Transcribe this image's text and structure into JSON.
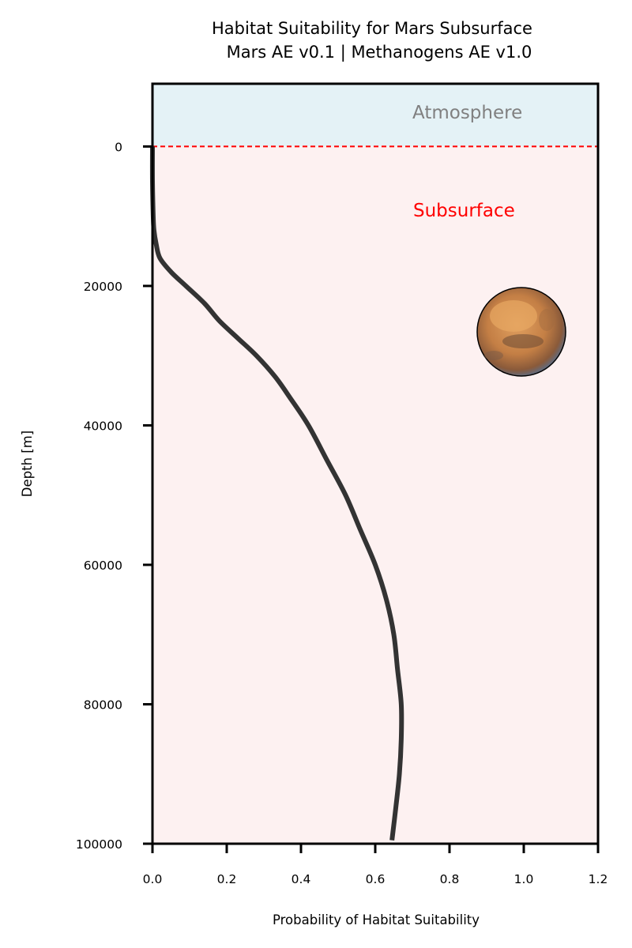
{
  "chart_data": {
    "type": "line",
    "title": "Habitat Suitability for Mars Subsurface",
    "subtitle": "Mars AE v0.1 | Methanogens AE v1.0",
    "xlabel": "Probability of Habitat Suitability",
    "ylabel": "Depth [m]",
    "xlim": [
      0.0,
      1.2
    ],
    "ylim": [
      100000,
      -9000
    ],
    "y_inverted": true,
    "x_ticks": [
      "0.0",
      "0.2",
      "0.4",
      "0.6",
      "0.8",
      "1.0",
      "1.2"
    ],
    "y_ticks": [
      "0",
      "20000",
      "40000",
      "60000",
      "80000",
      "100000"
    ],
    "grid": false,
    "surface_line": {
      "depth": 0,
      "color": "#ff0000",
      "style": "dashed"
    },
    "regions": [
      {
        "label": "Atmosphere",
        "from_depth": -9000,
        "to_depth": 0,
        "color": "#e4f2f6",
        "label_color": "#808080"
      },
      {
        "label": "Subsurface",
        "from_depth": 0,
        "to_depth": 100000,
        "color": "#fdf1f1",
        "label_color": "#ff0000"
      }
    ],
    "series": [
      {
        "color": "#333333",
        "points": [
          {
            "x": 0.0,
            "y": 0
          },
          {
            "x": 0.0,
            "y": 5000
          },
          {
            "x": 0.002,
            "y": 10000
          },
          {
            "x": 0.004,
            "y": 12000
          },
          {
            "x": 0.01,
            "y": 14000
          },
          {
            "x": 0.02,
            "y": 16000
          },
          {
            "x": 0.05,
            "y": 18000
          },
          {
            "x": 0.09,
            "y": 20000
          },
          {
            "x": 0.14,
            "y": 22500
          },
          {
            "x": 0.18,
            "y": 25000
          },
          {
            "x": 0.23,
            "y": 27500
          },
          {
            "x": 0.28,
            "y": 30000
          },
          {
            "x": 0.33,
            "y": 33000
          },
          {
            "x": 0.37,
            "y": 36000
          },
          {
            "x": 0.42,
            "y": 40000
          },
          {
            "x": 0.47,
            "y": 45000
          },
          {
            "x": 0.52,
            "y": 50000
          },
          {
            "x": 0.56,
            "y": 55000
          },
          {
            "x": 0.6,
            "y": 60000
          },
          {
            "x": 0.63,
            "y": 65000
          },
          {
            "x": 0.65,
            "y": 70000
          },
          {
            "x": 0.66,
            "y": 75000
          },
          {
            "x": 0.67,
            "y": 80000
          },
          {
            "x": 0.67,
            "y": 85000
          },
          {
            "x": 0.665,
            "y": 90000
          },
          {
            "x": 0.655,
            "y": 95000
          },
          {
            "x": 0.645,
            "y": 99500
          }
        ]
      }
    ]
  }
}
